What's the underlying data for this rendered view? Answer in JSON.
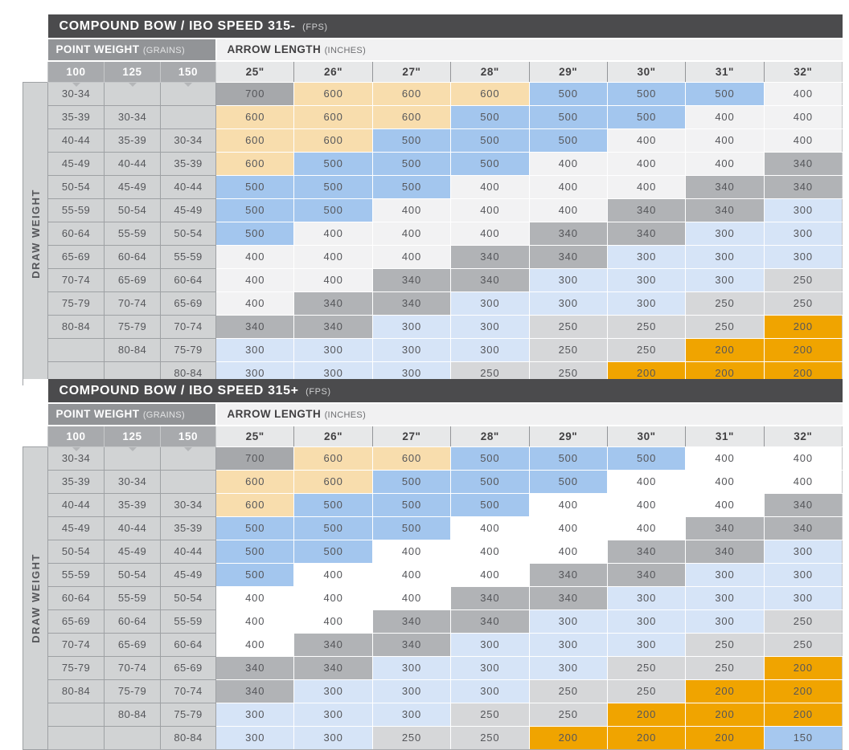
{
  "shared": {
    "side_label": "DRAW WEIGHT",
    "point_weight_label": "POINT WEIGHT",
    "point_weight_unit": "(GRAINS)",
    "arrow_length_label": "ARROW LENGTH",
    "arrow_length_unit": "(INCHES)",
    "point_weights": [
      "100",
      "125",
      "150"
    ],
    "arrow_lengths": [
      "25\"",
      "26\"",
      "27\"",
      "28\"",
      "29\"",
      "30\"",
      "31\"",
      "32\""
    ],
    "spine_colors": {
      "700": "#a6a8ab",
      "600": "#f8ddad",
      "500": "#a3c6ee",
      "400": "#f2f2f3",
      "340": "#b1b3b6",
      "300": "#d6e4f7",
      "250": "#d6d7d9",
      "200": "#f0a400",
      "150": "#a6c8ef"
    },
    "palette": {
      "title_bar": "#4b4b4d",
      "point_weight_bar": "#929497",
      "arrow_length_bar": "#f1f1f2",
      "point_weight_col_header": "#a8aaad",
      "arrow_length_col_header": "#e7e8e9",
      "draw_weight_cell": "#d1d3d4",
      "cell_text": "#55565a"
    }
  },
  "chart_data": [
    {
      "type": "table",
      "title": "COMPOUND BOW / IBO SPEED 315-",
      "title_unit": "(FPS)",
      "x_axis": "ARROW LENGTH (INCHES)",
      "y_axis": "DRAW WEIGHT (LBS) per POINT WEIGHT (GRAINS)",
      "row_headers_draw_weight": [
        [
          "30-34",
          "",
          ""
        ],
        [
          "35-39",
          "30-34",
          ""
        ],
        [
          "40-44",
          "35-39",
          "30-34"
        ],
        [
          "45-49",
          "40-44",
          "35-39"
        ],
        [
          "50-54",
          "45-49",
          "40-44"
        ],
        [
          "55-59",
          "50-54",
          "45-49"
        ],
        [
          "60-64",
          "55-59",
          "50-54"
        ],
        [
          "65-69",
          "60-64",
          "55-59"
        ],
        [
          "70-74",
          "65-69",
          "60-64"
        ],
        [
          "75-79",
          "70-74",
          "65-69"
        ],
        [
          "80-84",
          "75-79",
          "70-74"
        ],
        [
          "",
          "80-84",
          "75-79"
        ],
        [
          "",
          "",
          "80-84"
        ]
      ],
      "spine_values": [
        [
          700,
          600,
          600,
          600,
          500,
          500,
          500,
          400
        ],
        [
          600,
          600,
          600,
          500,
          500,
          500,
          400,
          400
        ],
        [
          600,
          600,
          500,
          500,
          500,
          400,
          400,
          400
        ],
        [
          600,
          500,
          500,
          500,
          400,
          400,
          400,
          340
        ],
        [
          500,
          500,
          500,
          400,
          400,
          400,
          340,
          340
        ],
        [
          500,
          500,
          400,
          400,
          400,
          340,
          340,
          300
        ],
        [
          500,
          400,
          400,
          400,
          340,
          340,
          300,
          300
        ],
        [
          400,
          400,
          400,
          340,
          340,
          300,
          300,
          300
        ],
        [
          400,
          400,
          340,
          340,
          300,
          300,
          300,
          250
        ],
        [
          400,
          340,
          340,
          300,
          300,
          300,
          250,
          250
        ],
        [
          340,
          340,
          300,
          300,
          250,
          250,
          250,
          200
        ],
        [
          300,
          300,
          300,
          300,
          250,
          250,
          200,
          200
        ],
        [
          300,
          300,
          300,
          250,
          250,
          200,
          200,
          200
        ]
      ],
      "color_overrides": {}
    },
    {
      "type": "table",
      "title": "COMPOUND BOW / IBO SPEED 315+",
      "title_unit": "(FPS)",
      "x_axis": "ARROW LENGTH (INCHES)",
      "y_axis": "DRAW WEIGHT (LBS) per POINT WEIGHT (GRAINS)",
      "row_headers_draw_weight": [
        [
          "30-34",
          "",
          ""
        ],
        [
          "35-39",
          "30-34",
          ""
        ],
        [
          "40-44",
          "35-39",
          "30-34"
        ],
        [
          "45-49",
          "40-44",
          "35-39"
        ],
        [
          "50-54",
          "45-49",
          "40-44"
        ],
        [
          "55-59",
          "50-54",
          "45-49"
        ],
        [
          "60-64",
          "55-59",
          "50-54"
        ],
        [
          "65-69",
          "60-64",
          "55-59"
        ],
        [
          "70-74",
          "65-69",
          "60-64"
        ],
        [
          "75-79",
          "70-74",
          "65-69"
        ],
        [
          "80-84",
          "75-79",
          "70-74"
        ],
        [
          "",
          "80-84",
          "75-79"
        ],
        [
          "",
          "",
          "80-84"
        ]
      ],
      "spine_values": [
        [
          700,
          600,
          600,
          500,
          500,
          500,
          400,
          400
        ],
        [
          600,
          600,
          500,
          500,
          500,
          400,
          400,
          400
        ],
        [
          600,
          500,
          500,
          500,
          400,
          400,
          400,
          340
        ],
        [
          500,
          500,
          500,
          400,
          400,
          400,
          340,
          340
        ],
        [
          500,
          500,
          400,
          400,
          400,
          340,
          340,
          300
        ],
        [
          500,
          400,
          400,
          400,
          340,
          340,
          300,
          300
        ],
        [
          400,
          400,
          400,
          340,
          340,
          300,
          300,
          300
        ],
        [
          400,
          400,
          340,
          340,
          300,
          300,
          300,
          250
        ],
        [
          400,
          340,
          340,
          300,
          300,
          300,
          250,
          250
        ],
        [
          340,
          340,
          300,
          300,
          300,
          250,
          250,
          200
        ],
        [
          340,
          300,
          300,
          300,
          250,
          250,
          200,
          200
        ],
        [
          300,
          300,
          300,
          250,
          250,
          200,
          200,
          200
        ],
        [
          300,
          300,
          250,
          250,
          200,
          200,
          200,
          150
        ]
      ],
      "color_overrides": {
        "400": "#ffffff"
      }
    }
  ]
}
